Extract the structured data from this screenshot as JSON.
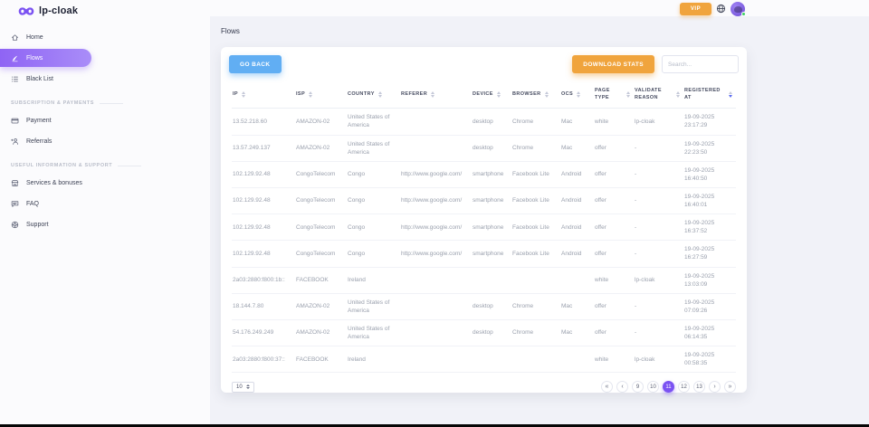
{
  "brand": {
    "name": "lp-cloak"
  },
  "topbar": {
    "vip_label": "VIP"
  },
  "sidebar": {
    "sections": [
      {
        "heading": "",
        "items": [
          {
            "label": "Home",
            "icon": "home-icon",
            "active": false
          },
          {
            "label": "Flows",
            "icon": "flows-icon",
            "active": true
          },
          {
            "label": "Black List",
            "icon": "list-icon",
            "active": false
          }
        ]
      },
      {
        "heading": "SUBSCRIPTION & PAYMENTS",
        "items": [
          {
            "label": "Payment",
            "icon": "payment-icon",
            "active": false
          },
          {
            "label": "Referrals",
            "icon": "referrals-icon",
            "active": false
          }
        ]
      },
      {
        "heading": "USEFUL INFORMATION & SUPPORT",
        "items": [
          {
            "label": "Services & bonuses",
            "icon": "services-icon",
            "active": false
          },
          {
            "label": "FAQ",
            "icon": "faq-icon",
            "active": false
          },
          {
            "label": "Support",
            "icon": "support-icon",
            "active": false
          }
        ]
      }
    ]
  },
  "page": {
    "title": "Flows"
  },
  "toolbar": {
    "go_back": "GO BACK",
    "download_stats": "DOWNLOAD STATS",
    "search_placeholder": "Search...",
    "search_value": ""
  },
  "table": {
    "columns": [
      {
        "label": "IP",
        "sort": "none"
      },
      {
        "label": "ISP",
        "sort": "none"
      },
      {
        "label": "COUNTRY",
        "sort": "none"
      },
      {
        "label": "REFERER",
        "sort": "none"
      },
      {
        "label": "DEVICE",
        "sort": "none"
      },
      {
        "label": "BROWSER",
        "sort": "none"
      },
      {
        "label": "OCS",
        "sort": "none"
      },
      {
        "label": "PAGE TYPE",
        "sort": "none"
      },
      {
        "label": "VALIDATE REASON",
        "sort": "none"
      },
      {
        "label": "REGISTERED AT",
        "sort": "desc"
      }
    ],
    "rows": [
      [
        "13.52.218.60",
        "AMAZON-02",
        "United States of America",
        "",
        "desktop",
        "Chrome",
        "Mac",
        "white",
        "lp-cloak",
        "19-09-2025\n23:17:29"
      ],
      [
        "13.57.249.137",
        "AMAZON-02",
        "United States of America",
        "",
        "desktop",
        "Chrome",
        "Mac",
        "offer",
        "-",
        "19-09-2025\n22:23:50"
      ],
      [
        "102.129.92.48",
        "CongoTelecom",
        "Congo",
        "http://www.google.com/",
        "smartphone",
        "Facebook Lite",
        "Android",
        "offer",
        "-",
        "19-09-2025\n16:40:50"
      ],
      [
        "102.129.92.48",
        "CongoTelecom",
        "Congo",
        "http://www.google.com/",
        "smartphone",
        "Facebook Lite",
        "Android",
        "offer",
        "-",
        "19-09-2025\n16:40:01"
      ],
      [
        "102.129.92.48",
        "CongoTelecom",
        "Congo",
        "http://www.google.com/",
        "smartphone",
        "Facebook Lite",
        "Android",
        "offer",
        "-",
        "19-09-2025\n16:37:52"
      ],
      [
        "102.129.92.48",
        "CongoTelecom",
        "Congo",
        "http://www.google.com/",
        "smartphone",
        "Facebook Lite",
        "Android",
        "offer",
        "-",
        "19-09-2025\n16:27:59"
      ],
      [
        "2a03:2880:f800:1b::",
        "FACEBOOK",
        "Ireland",
        "",
        "",
        "",
        "",
        "white",
        "lp-cloak",
        "19-09-2025\n13:03:09"
      ],
      [
        "18.144.7.80",
        "AMAZON-02",
        "United States of America",
        "",
        "desktop",
        "Chrome",
        "Mac",
        "offer",
        "-",
        "19-09-2025\n07:09:26"
      ],
      [
        "54.176.249.249",
        "AMAZON-02",
        "United States of America",
        "",
        "desktop",
        "Chrome",
        "Mac",
        "offer",
        "-",
        "19-09-2025\n06:14:35"
      ],
      [
        "2a03:2880:f800:37::",
        "FACEBOOK",
        "Ireland",
        "",
        "",
        "",
        "",
        "white",
        "lp-cloak",
        "19-09-2025\n00:58:35"
      ]
    ]
  },
  "footer": {
    "page_size": "10",
    "pagination": [
      {
        "label": "«",
        "type": "first",
        "active": false
      },
      {
        "label": "‹",
        "type": "prev",
        "active": false
      },
      {
        "label": "9",
        "type": "page",
        "active": false
      },
      {
        "label": "10",
        "type": "page",
        "active": false
      },
      {
        "label": "11",
        "type": "page",
        "active": true
      },
      {
        "label": "12",
        "type": "page",
        "active": false
      },
      {
        "label": "13",
        "type": "page",
        "active": false
      },
      {
        "label": "›",
        "type": "next",
        "active": false
      },
      {
        "label": "»",
        "type": "last",
        "active": false
      }
    ]
  },
  "colors": {
    "accent": "#7b52f2",
    "blue_button": "#61aef3",
    "orange_button": "#f0a43d",
    "active_sort_arrow": "#5b6bf0",
    "online_dot": "#3ccf63"
  }
}
